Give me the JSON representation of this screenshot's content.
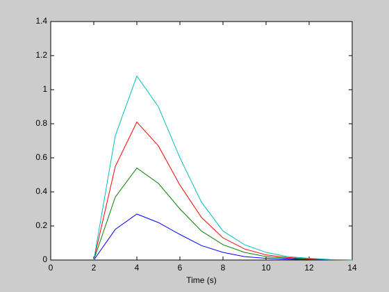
{
  "chart_data": {
    "type": "line",
    "xlabel": "Time (s)",
    "x": [
      2,
      3,
      4,
      5,
      6,
      7,
      8,
      9,
      10,
      11,
      12,
      13,
      14
    ],
    "series": [
      {
        "color": "#0000ff",
        "values": [
          0,
          0.18,
          0.27,
          0.22,
          0.15,
          0.085,
          0.045,
          0.02,
          0.01,
          0.005,
          0.002,
          0.001,
          0
        ]
      },
      {
        "color": "#008000",
        "values": [
          0,
          0.37,
          0.54,
          0.45,
          0.3,
          0.17,
          0.09,
          0.045,
          0.02,
          0.01,
          0.005,
          0.001,
          0
        ]
      },
      {
        "color": "#ff0000",
        "values": [
          0,
          0.55,
          0.81,
          0.67,
          0.44,
          0.25,
          0.13,
          0.065,
          0.03,
          0.015,
          0.007,
          0.002,
          0
        ]
      },
      {
        "color": "#00bfbf",
        "values": [
          0,
          0.73,
          1.08,
          0.9,
          0.6,
          0.34,
          0.17,
          0.09,
          0.045,
          0.02,
          0.01,
          0.003,
          0
        ]
      }
    ],
    "xlim": [
      0,
      14
    ],
    "xticks": [
      0,
      2,
      4,
      6,
      8,
      10,
      12,
      14
    ],
    "ylim": [
      0,
      1.4
    ],
    "yticks": [
      0,
      0.2,
      0.4,
      0.6,
      0.8,
      1,
      1.2,
      1.4
    ],
    "grid": false
  }
}
